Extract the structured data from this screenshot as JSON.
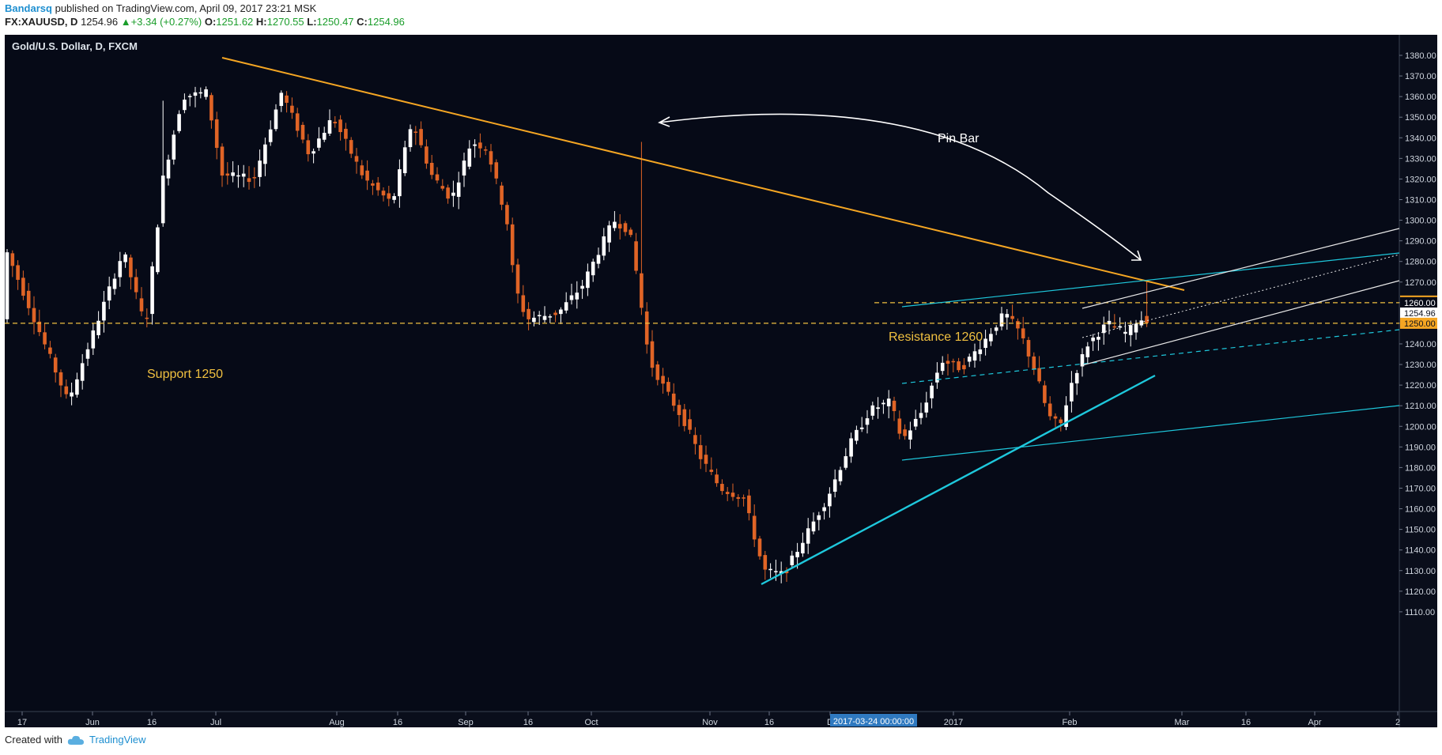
{
  "header": {
    "author": "Bandarsq",
    "published_text": "published on TradingView.com, April 09, 2017 23:21 MSK",
    "symbol": "FX:XAUUSD, D",
    "last": "1254.96",
    "change": "+3.34 (+0.27%)",
    "open_label": "O:",
    "open": "1251.62",
    "high_label": "H:",
    "high": "1270.55",
    "low_label": "L:",
    "low": "1250.47",
    "close_label": "C:",
    "close": "1254.96"
  },
  "footer": {
    "created_with": "Created with",
    "brand": "TradingView"
  },
  "colors": {
    "background": "#0a0e1b",
    "up": "#ffffff",
    "down": "#e06426",
    "trend": "#f5a623",
    "cyan": "#1ec8dc",
    "dashed": "#f0c040"
  },
  "chart_data": {
    "type": "candlestick",
    "title": "Gold/U.S. Dollar, D, FXCM",
    "x_ticks": [
      "17",
      "Jun",
      "16",
      "Jul",
      "Aug",
      "16",
      "Sep",
      "16",
      "Oct",
      "Nov",
      "16",
      "D",
      "2017",
      "Feb",
      "Mar",
      "16",
      "Apr",
      "2"
    ],
    "crosshair_label": "2017-03-24 00:00:00",
    "y_ticks": [
      "1380.00",
      "1370.00",
      "1360.00",
      "1350.00",
      "1340.00",
      "1330.00",
      "1320.00",
      "1310.00",
      "1300.00",
      "1290.00",
      "1280.00",
      "1270.00",
      "1260.00",
      "1250.00",
      "1240.00",
      "1230.00",
      "1220.00",
      "1210.00",
      "1200.00",
      "1190.00",
      "1180.00",
      "1170.00",
      "1160.00",
      "1150.00",
      "1140.00",
      "1130.00",
      "1120.00",
      "1110.00"
    ],
    "ylim": [
      1106,
      1390
    ],
    "price_badges": [
      {
        "label": "1260.78",
        "value": 1260.78,
        "style": "gold"
      },
      {
        "label": "1260.00",
        "value": 1260.0,
        "style": "dark"
      },
      {
        "label": "1254.96",
        "value": 1254.96,
        "style": "light"
      },
      {
        "label": "1250.00",
        "value": 1250.0,
        "style": "gold"
      }
    ],
    "annotations": {
      "support_label": "Support 1250",
      "support_level": 1250,
      "resistance_label": "Resistance 1260",
      "resistance_level": 1260,
      "pin_bar_label": "Pin Bar"
    },
    "anchors": [
      {
        "x": 0,
        "y": 1287
      },
      {
        "x": 80,
        "y": 1212
      },
      {
        "x": 150,
        "y": 1285
      },
      {
        "x": 178,
        "y": 1248
      },
      {
        "x": 200,
        "y": 1320
      },
      {
        "x": 225,
        "y": 1360
      },
      {
        "x": 255,
        "y": 1362
      },
      {
        "x": 275,
        "y": 1322
      },
      {
        "x": 315,
        "y": 1320
      },
      {
        "x": 350,
        "y": 1362
      },
      {
        "x": 385,
        "y": 1332
      },
      {
        "x": 415,
        "y": 1350
      },
      {
        "x": 455,
        "y": 1320
      },
      {
        "x": 490,
        "y": 1308
      },
      {
        "x": 515,
        "y": 1348
      },
      {
        "x": 540,
        "y": 1322
      },
      {
        "x": 565,
        "y": 1310
      },
      {
        "x": 590,
        "y": 1338
      },
      {
        "x": 610,
        "y": 1335
      },
      {
        "x": 635,
        "y": 1300
      },
      {
        "x": 645,
        "y": 1268
      },
      {
        "x": 660,
        "y": 1252
      },
      {
        "x": 700,
        "y": 1255
      },
      {
        "x": 730,
        "y": 1268
      },
      {
        "x": 770,
        "y": 1300
      },
      {
        "x": 790,
        "y": 1295
      },
      {
        "x": 800,
        "y": 1272
      },
      {
        "x": 815,
        "y": 1232
      },
      {
        "x": 835,
        "y": 1218
      },
      {
        "x": 860,
        "y": 1202
      },
      {
        "x": 880,
        "y": 1185
      },
      {
        "x": 905,
        "y": 1170
      },
      {
        "x": 935,
        "y": 1165
      },
      {
        "x": 960,
        "y": 1130
      },
      {
        "x": 985,
        "y": 1128
      },
      {
        "x": 1010,
        "y": 1145
      },
      {
        "x": 1040,
        "y": 1165
      },
      {
        "x": 1070,
        "y": 1192
      },
      {
        "x": 1095,
        "y": 1208
      },
      {
        "x": 1120,
        "y": 1212
      },
      {
        "x": 1135,
        "y": 1193
      },
      {
        "x": 1160,
        "y": 1207
      },
      {
        "x": 1185,
        "y": 1232
      },
      {
        "x": 1210,
        "y": 1228
      },
      {
        "x": 1240,
        "y": 1242
      },
      {
        "x": 1265,
        "y": 1255
      },
      {
        "x": 1285,
        "y": 1245
      },
      {
        "x": 1305,
        "y": 1225
      },
      {
        "x": 1320,
        "y": 1205
      },
      {
        "x": 1335,
        "y": 1200
      },
      {
        "x": 1350,
        "y": 1222
      },
      {
        "x": 1370,
        "y": 1240
      },
      {
        "x": 1395,
        "y": 1250
      },
      {
        "x": 1420,
        "y": 1245
      },
      {
        "x": 1433,
        "y": 1252
      },
      {
        "x": 1447,
        "y": 1252
      }
    ],
    "events": [
      {
        "x": 200,
        "high": 1358
      },
      {
        "x": 802,
        "high": 1338
      },
      {
        "x": 1447,
        "high": 1270.5
      }
    ]
  }
}
